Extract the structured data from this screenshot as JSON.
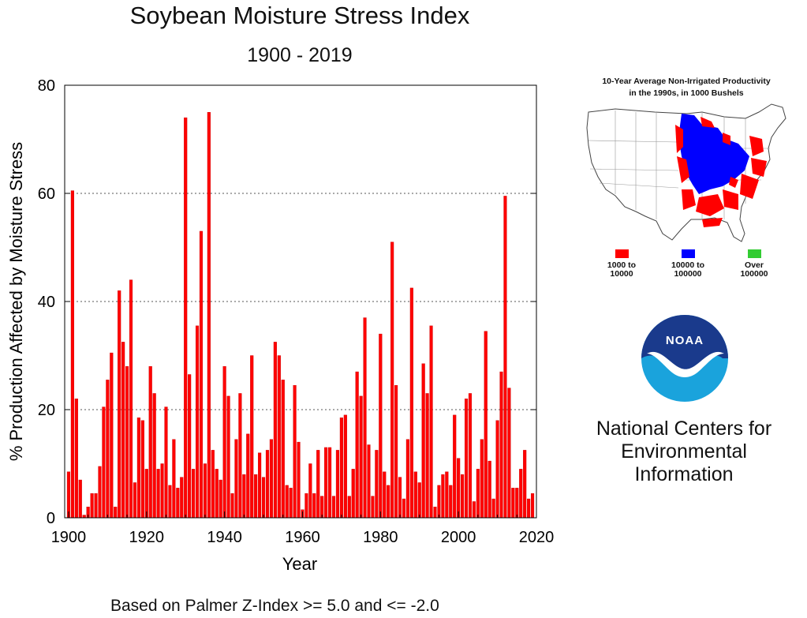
{
  "header": {
    "title": "Soybean Moisture Stress Index",
    "subtitle": "1900 - 2019"
  },
  "footnote": "Based on Palmer Z-Index >= 5.0 and <= -2.0",
  "map": {
    "title_line1": "10-Year Average Non-Irrigated Productivity",
    "title_line2": "in the 1990s, in 1000 Bushels",
    "legend": [
      {
        "line1": "1000 to",
        "line2": "10000",
        "color": "#ff0000"
      },
      {
        "line1": "10000 to",
        "line2": "100000",
        "color": "#0000ff"
      },
      {
        "line1": "Over",
        "line2": "100000",
        "color": "#33cc33"
      }
    ]
  },
  "branding": {
    "logo_text": "NOAA",
    "ncei_line1": "National Centers for",
    "ncei_line2": "Environmental",
    "ncei_line3": "Information"
  },
  "colors": {
    "bar": "#ff0000",
    "bar_edge": "#cc0000",
    "noaa_dark": "#1a3a8c",
    "noaa_light": "#1aa3dc"
  },
  "chart_data": {
    "type": "bar",
    "title": "Soybean Moisture Stress Index",
    "subtitle": "1900 - 2019",
    "xlabel": "Year",
    "ylabel": "% Production Affected by Moisture Stress",
    "xlim": [
      1899,
      2020
    ],
    "ylim": [
      0,
      80
    ],
    "xticks": [
      1900,
      1920,
      1940,
      1960,
      1980,
      2000,
      2020
    ],
    "yticks": [
      0,
      20,
      40,
      60,
      80
    ],
    "grid": "horizontal dotted at 20, 40, 60",
    "x_start": 1900,
    "values": [
      8.5,
      60.5,
      22,
      7,
      0.5,
      2,
      4.5,
      4.5,
      9.5,
      20.5,
      25.5,
      30.5,
      2,
      42,
      32.5,
      28,
      44,
      6.5,
      18.5,
      18,
      9,
      28,
      23,
      9,
      10,
      20.5,
      6,
      14.5,
      5.5,
      7.5,
      74,
      26.5,
      9,
      35.5,
      53,
      10,
      75,
      12.5,
      9,
      7,
      28,
      22.5,
      4.5,
      14.5,
      23,
      8,
      15.5,
      30,
      8,
      12,
      7.5,
      12.5,
      14.5,
      32.5,
      30,
      25.5,
      6,
      5.5,
      24.5,
      14,
      1.5,
      4.5,
      10,
      4.5,
      12.5,
      4,
      13,
      13,
      4,
      12.5,
      18.5,
      19,
      4,
      9,
      27,
      22.5,
      37,
      13.5,
      4,
      12.5,
      34,
      8.5,
      6,
      51,
      24.5,
      7.5,
      3.5,
      14.5,
      42.5,
      8.5,
      6.5,
      28.5,
      23,
      35.5,
      2,
      6,
      8,
      8.5,
      6,
      19,
      11,
      8,
      22,
      23,
      3,
      9,
      14.5,
      34.5,
      10.5,
      3.5,
      18,
      27,
      59.5,
      24,
      5.5,
      5.5,
      9,
      12.5,
      3.5,
      4.5
    ]
  }
}
